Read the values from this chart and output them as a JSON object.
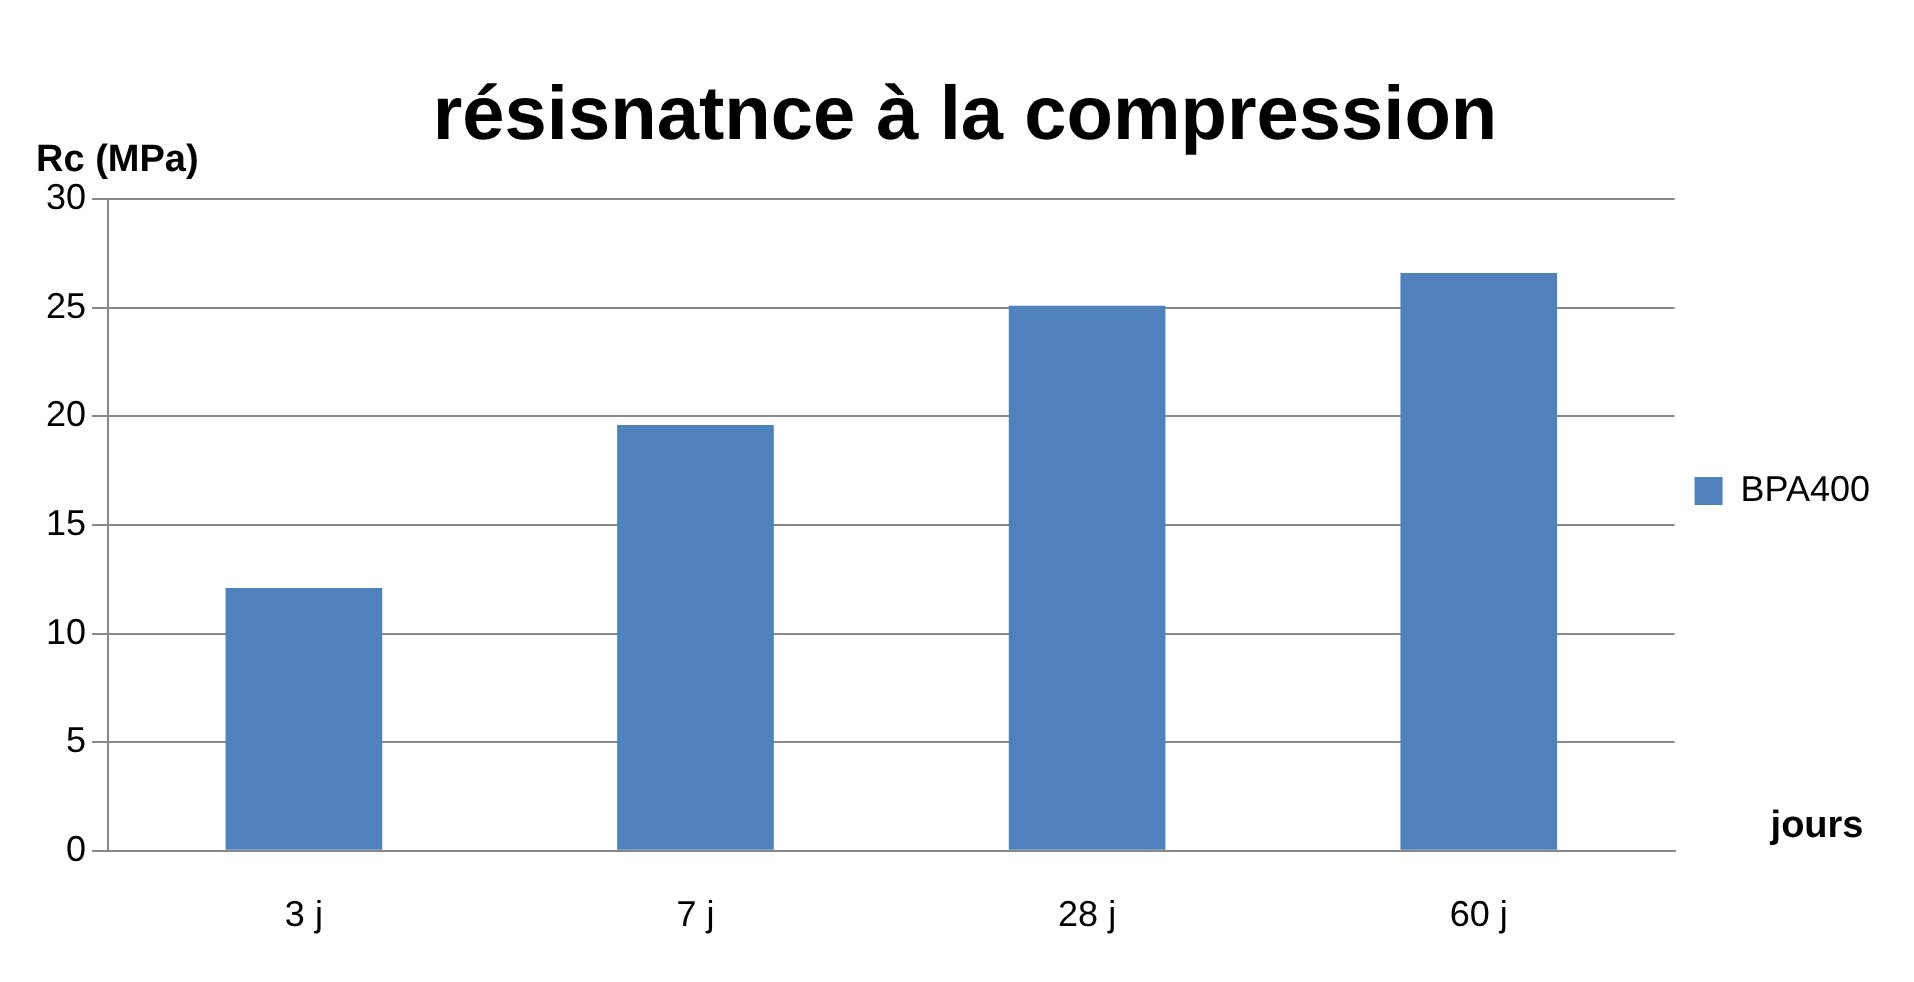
{
  "chart_data": {
    "type": "bar",
    "title": "résisnatnce à la compression",
    "ylabel": "Rc (MPa)",
    "xlabel": "jours",
    "categories": [
      "3 j",
      "7 j",
      "28 j",
      "60 j"
    ],
    "series": [
      {
        "name": "BPA400",
        "color": "#4f81bd",
        "values": [
          12.1,
          19.6,
          25.1,
          26.6
        ]
      }
    ],
    "ylim": [
      0,
      30
    ],
    "yticks": [
      0,
      5,
      10,
      15,
      20,
      25,
      30
    ],
    "grid": "y",
    "legend": "right"
  }
}
